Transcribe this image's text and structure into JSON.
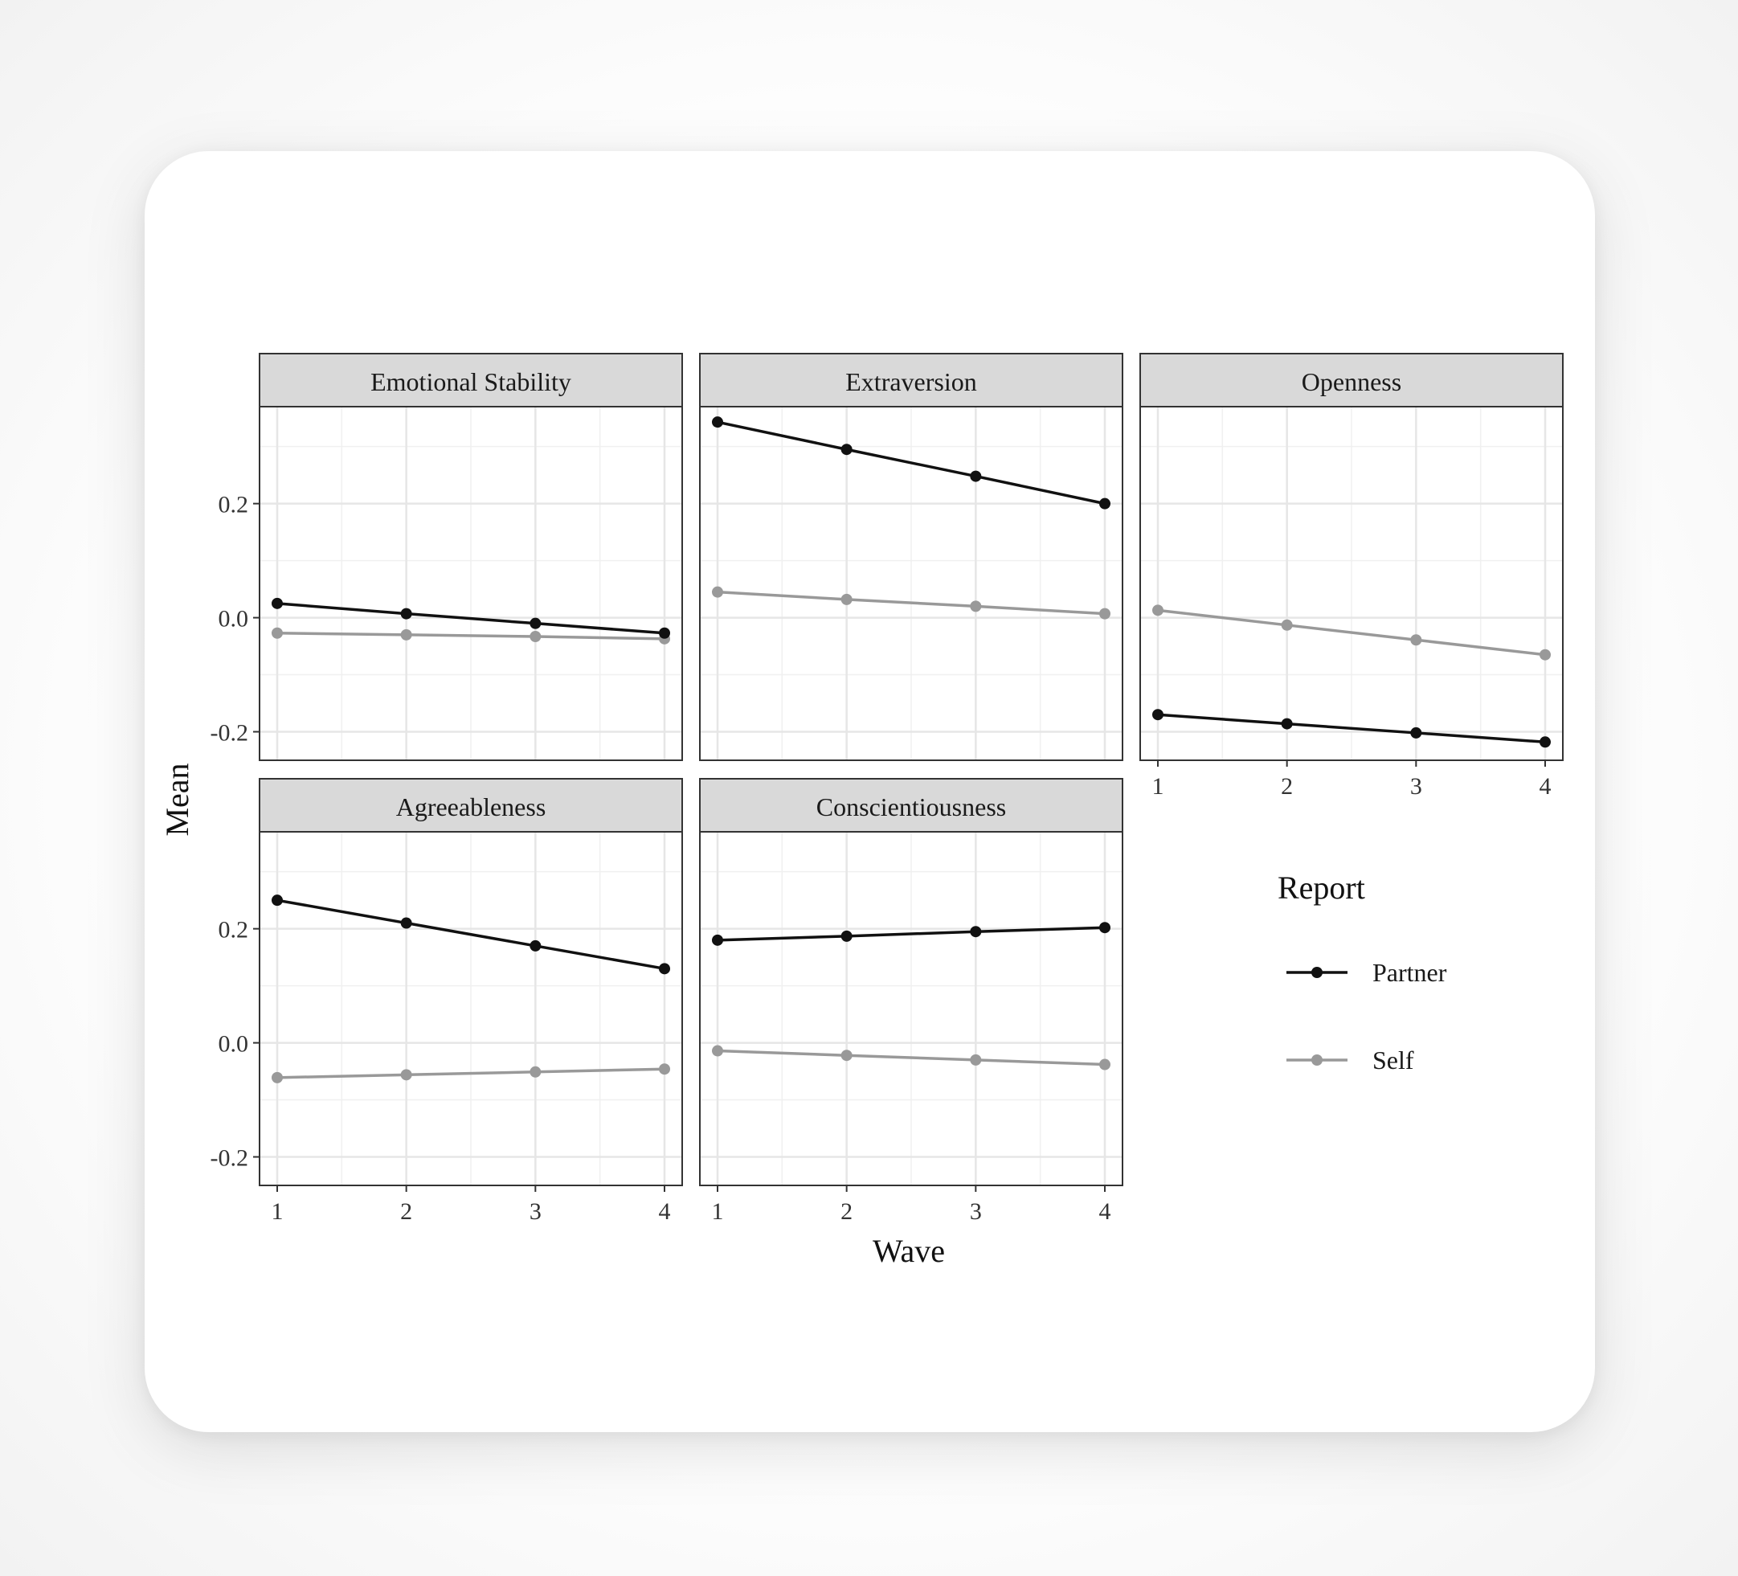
{
  "chart_data": {
    "type": "line",
    "xlabel": "Wave",
    "ylabel": "Mean",
    "x": [
      1,
      2,
      3,
      4
    ],
    "x_ticks": [
      "1",
      "2",
      "3",
      "4"
    ],
    "ylim": [
      -0.25,
      0.37
    ],
    "y_ticks": [
      "-0.2",
      "0.0",
      "0.2"
    ],
    "y_tick_values": [
      -0.2,
      0.0,
      0.2
    ],
    "grid": true,
    "legend": {
      "title": "Report",
      "position": "right",
      "entries": [
        {
          "name": "Partner",
          "color": "#111111"
        },
        {
          "name": "Self",
          "color": "#999999"
        }
      ]
    },
    "panels": [
      {
        "title": "Emotional Stability",
        "series": [
          {
            "name": "Partner",
            "values": [
              0.025,
              0.007,
              -0.01,
              -0.027
            ]
          },
          {
            "name": "Self",
            "values": [
              -0.027,
              -0.03,
              -0.033,
              -0.037
            ]
          }
        ]
      },
      {
        "title": "Extraversion",
        "series": [
          {
            "name": "Partner",
            "values": [
              0.343,
              0.295,
              0.248,
              0.2
            ]
          },
          {
            "name": "Self",
            "values": [
              0.045,
              0.032,
              0.02,
              0.007
            ]
          }
        ]
      },
      {
        "title": "Openness",
        "series": [
          {
            "name": "Partner",
            "values": [
              -0.17,
              -0.186,
              -0.202,
              -0.218
            ]
          },
          {
            "name": "Self",
            "values": [
              0.013,
              -0.013,
              -0.039,
              -0.065
            ]
          }
        ]
      },
      {
        "title": "Agreeableness",
        "series": [
          {
            "name": "Partner",
            "values": [
              0.25,
              0.21,
              0.17,
              0.13
            ]
          },
          {
            "name": "Self",
            "values": [
              -0.061,
              -0.056,
              -0.051,
              -0.046
            ]
          }
        ]
      },
      {
        "title": "Conscientiousness",
        "series": [
          {
            "name": "Partner",
            "values": [
              0.18,
              0.187,
              0.195,
              0.202
            ]
          },
          {
            "name": "Self",
            "values": [
              -0.014,
              -0.022,
              -0.03,
              -0.038
            ]
          }
        ]
      }
    ]
  }
}
